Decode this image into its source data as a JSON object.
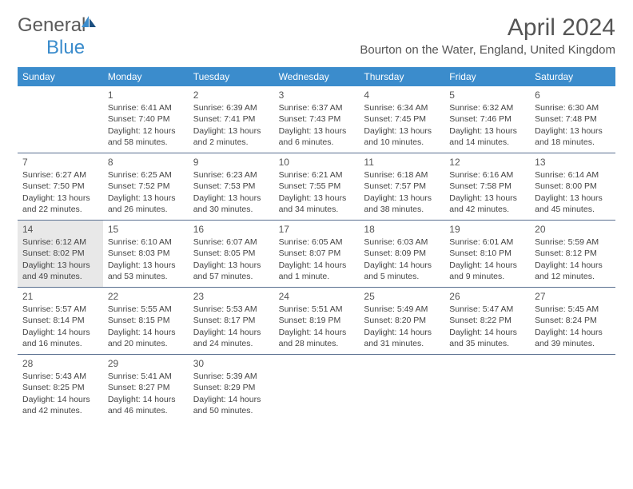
{
  "logo": {
    "part1": "General",
    "part2": "Blue"
  },
  "header": {
    "month": "April 2024",
    "location": "Bourton on the Water, England, United Kingdom"
  },
  "colors": {
    "header_bg": "#3b8ccc",
    "header_text": "#ffffff",
    "row_divider": "#5a7090",
    "highlight_bg": "#e8e8e8",
    "text": "#444444",
    "logo_gray": "#5a5a5a",
    "logo_blue": "#3b8ccc"
  },
  "weekdays": [
    "Sunday",
    "Monday",
    "Tuesday",
    "Wednesday",
    "Thursday",
    "Friday",
    "Saturday"
  ],
  "grid": {
    "rows": 5,
    "cols": 7,
    "start_offset": 1,
    "last_day": 30,
    "highlight_days": [
      14
    ]
  },
  "days": {
    "1": {
      "sunrise": "6:41 AM",
      "sunset": "7:40 PM",
      "daylight": "12 hours and 58 minutes."
    },
    "2": {
      "sunrise": "6:39 AM",
      "sunset": "7:41 PM",
      "daylight": "13 hours and 2 minutes."
    },
    "3": {
      "sunrise": "6:37 AM",
      "sunset": "7:43 PM",
      "daylight": "13 hours and 6 minutes."
    },
    "4": {
      "sunrise": "6:34 AM",
      "sunset": "7:45 PM",
      "daylight": "13 hours and 10 minutes."
    },
    "5": {
      "sunrise": "6:32 AM",
      "sunset": "7:46 PM",
      "daylight": "13 hours and 14 minutes."
    },
    "6": {
      "sunrise": "6:30 AM",
      "sunset": "7:48 PM",
      "daylight": "13 hours and 18 minutes."
    },
    "7": {
      "sunrise": "6:27 AM",
      "sunset": "7:50 PM",
      "daylight": "13 hours and 22 minutes."
    },
    "8": {
      "sunrise": "6:25 AM",
      "sunset": "7:52 PM",
      "daylight": "13 hours and 26 minutes."
    },
    "9": {
      "sunrise": "6:23 AM",
      "sunset": "7:53 PM",
      "daylight": "13 hours and 30 minutes."
    },
    "10": {
      "sunrise": "6:21 AM",
      "sunset": "7:55 PM",
      "daylight": "13 hours and 34 minutes."
    },
    "11": {
      "sunrise": "6:18 AM",
      "sunset": "7:57 PM",
      "daylight": "13 hours and 38 minutes."
    },
    "12": {
      "sunrise": "6:16 AM",
      "sunset": "7:58 PM",
      "daylight": "13 hours and 42 minutes."
    },
    "13": {
      "sunrise": "6:14 AM",
      "sunset": "8:00 PM",
      "daylight": "13 hours and 45 minutes."
    },
    "14": {
      "sunrise": "6:12 AM",
      "sunset": "8:02 PM",
      "daylight": "13 hours and 49 minutes."
    },
    "15": {
      "sunrise": "6:10 AM",
      "sunset": "8:03 PM",
      "daylight": "13 hours and 53 minutes."
    },
    "16": {
      "sunrise": "6:07 AM",
      "sunset": "8:05 PM",
      "daylight": "13 hours and 57 minutes."
    },
    "17": {
      "sunrise": "6:05 AM",
      "sunset": "8:07 PM",
      "daylight": "14 hours and 1 minute."
    },
    "18": {
      "sunrise": "6:03 AM",
      "sunset": "8:09 PM",
      "daylight": "14 hours and 5 minutes."
    },
    "19": {
      "sunrise": "6:01 AM",
      "sunset": "8:10 PM",
      "daylight": "14 hours and 9 minutes."
    },
    "20": {
      "sunrise": "5:59 AM",
      "sunset": "8:12 PM",
      "daylight": "14 hours and 12 minutes."
    },
    "21": {
      "sunrise": "5:57 AM",
      "sunset": "8:14 PM",
      "daylight": "14 hours and 16 minutes."
    },
    "22": {
      "sunrise": "5:55 AM",
      "sunset": "8:15 PM",
      "daylight": "14 hours and 20 minutes."
    },
    "23": {
      "sunrise": "5:53 AM",
      "sunset": "8:17 PM",
      "daylight": "14 hours and 24 minutes."
    },
    "24": {
      "sunrise": "5:51 AM",
      "sunset": "8:19 PM",
      "daylight": "14 hours and 28 minutes."
    },
    "25": {
      "sunrise": "5:49 AM",
      "sunset": "8:20 PM",
      "daylight": "14 hours and 31 minutes."
    },
    "26": {
      "sunrise": "5:47 AM",
      "sunset": "8:22 PM",
      "daylight": "14 hours and 35 minutes."
    },
    "27": {
      "sunrise": "5:45 AM",
      "sunset": "8:24 PM",
      "daylight": "14 hours and 39 minutes."
    },
    "28": {
      "sunrise": "5:43 AM",
      "sunset": "8:25 PM",
      "daylight": "14 hours and 42 minutes."
    },
    "29": {
      "sunrise": "5:41 AM",
      "sunset": "8:27 PM",
      "daylight": "14 hours and 46 minutes."
    },
    "30": {
      "sunrise": "5:39 AM",
      "sunset": "8:29 PM",
      "daylight": "14 hours and 50 minutes."
    }
  },
  "labels": {
    "sunrise": "Sunrise: ",
    "sunset": "Sunset: ",
    "daylight": "Daylight: "
  }
}
